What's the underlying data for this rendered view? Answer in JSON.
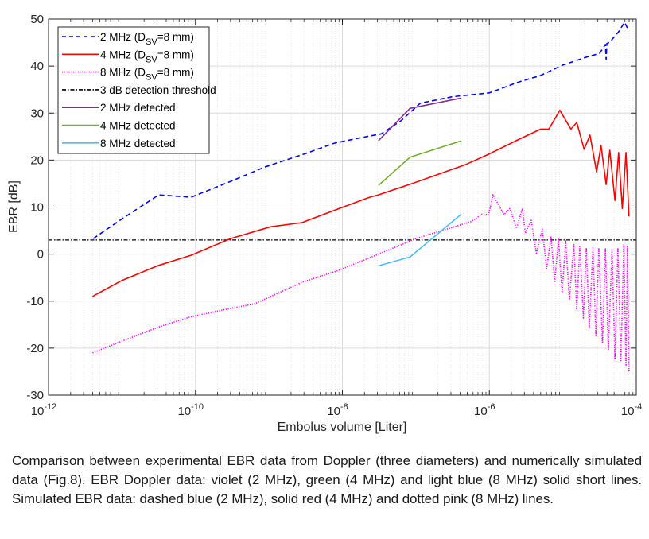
{
  "chart_data": {
    "type": "line",
    "title": "",
    "xlabel": "Embolus volume [Liter]",
    "ylabel": "EBR [dB]",
    "xscale": "log",
    "xlim": [
      1e-12,
      0.0001
    ],
    "ylim": [
      -30,
      50
    ],
    "grid": true,
    "legend_position": "top-left",
    "x_ticks": [
      {
        "base": "10",
        "exp": "-12",
        "value": 1e-12
      },
      {
        "base": "10",
        "exp": "-10",
        "value": 1e-10
      },
      {
        "base": "10",
        "exp": "-8",
        "value": 1e-08
      },
      {
        "base": "10",
        "exp": "-6",
        "value": 1e-06
      },
      {
        "base": "10",
        "exp": "-4",
        "value": 0.0001
      }
    ],
    "y_ticks": [
      "-30",
      "-20",
      "-10",
      "0",
      "10",
      "20",
      "30",
      "40",
      "50"
    ],
    "series": [
      {
        "name": "2 MHz (DSV=8 mm)",
        "legend_main": "2 MHz (D",
        "legend_sub": "SV",
        "legend_tail": "=8 mm)",
        "color": "#0000ff",
        "style": "dashed",
        "log10_x": [
          -11.39,
          -11.0,
          -10.5,
          -10.06,
          -9.5,
          -9.06,
          -8.5,
          -8.11,
          -7.8,
          -7.47,
          -7.2,
          -6.94,
          -6.5,
          -6.0,
          -5.6,
          -5.3,
          -5.0,
          -4.7,
          -4.5,
          -4.42,
          -4.41,
          -4.4,
          -4.36,
          -4.24,
          -4.16,
          -4.12
        ],
        "y": [
          3.3,
          7.5,
          12.6,
          12.1,
          15.6,
          18.5,
          21.4,
          23.6,
          24.6,
          25.6,
          28.4,
          32.1,
          33.5,
          34.3,
          36.6,
          38.0,
          40.2,
          41.8,
          42.7,
          44.6,
          41.4,
          44.8,
          45.1,
          47.3,
          49.3,
          48.1
        ]
      },
      {
        "name": "4 MHz (DSV=8 mm)",
        "legend_main": "4 MHz (D",
        "legend_sub": "SV",
        "legend_tail": "=8 mm)",
        "color": "#ff0000",
        "style": "solid",
        "log10_x": [
          -11.4,
          -11.0,
          -10.5,
          -10.06,
          -9.52,
          -8.98,
          -8.55,
          -8.06,
          -7.63,
          -7.51,
          -7.03,
          -6.33,
          -6.03,
          -5.6,
          -5.3,
          -5.19,
          -5.04,
          -4.89,
          -4.81,
          -4.71,
          -4.63,
          -4.54,
          -4.48,
          -4.41,
          -4.36,
          -4.29,
          -4.24,
          -4.19,
          -4.14,
          -4.1
        ],
        "y": [
          -9.0,
          -5.6,
          -2.4,
          -0.25,
          3.3,
          5.8,
          6.7,
          9.6,
          12.1,
          12.6,
          15.1,
          19.0,
          21.1,
          24.4,
          26.6,
          26.6,
          30.6,
          26.6,
          28.0,
          22.3,
          25.3,
          17.5,
          23.1,
          14.8,
          22.1,
          11.4,
          21.6,
          9.7,
          21.6,
          8.0
        ]
      },
      {
        "name": "8 MHz (DSV=8 mm)",
        "legend_main": "8 MHz (D",
        "legend_sub": "SV",
        "legend_tail": "=8 mm)",
        "color": "#ff00ff",
        "style": "dotted",
        "log10_x": [
          -11.4,
          -11.0,
          -10.5,
          -10.06,
          -9.6,
          -9.2,
          -8.55,
          -8.06,
          -7.57,
          -7.0,
          -6.25,
          -6.1,
          -6.01,
          -5.95,
          -5.8,
          -5.72,
          -5.63,
          -5.55,
          -5.51,
          -5.43,
          -5.36,
          -5.28,
          -5.22,
          -5.16,
          -5.11,
          -5.06,
          -5.01,
          -4.96,
          -4.91,
          -4.85,
          -4.81,
          -4.77,
          -4.72,
          -4.68,
          -4.64,
          -4.59,
          -4.55,
          -4.51,
          -4.46,
          -4.42,
          -4.38,
          -4.33,
          -4.29,
          -4.25,
          -4.21,
          -4.17,
          -4.14,
          -4.12,
          -4.1
        ],
        "y": [
          -21.0,
          -18.5,
          -15.5,
          -13.3,
          -11.8,
          -10.6,
          -6.0,
          -3.5,
          -0.4,
          3.3,
          6.9,
          8.5,
          8.4,
          12.6,
          8.4,
          9.7,
          5.5,
          9.7,
          4.5,
          7.2,
          0.2,
          5.3,
          -3.1,
          3.6,
          -6.0,
          3.3,
          -8.2,
          2.8,
          -9.7,
          2.0,
          -11.9,
          1.6,
          -13.6,
          1.3,
          -15.8,
          1.3,
          -17.5,
          1.3,
          -19.0,
          1.1,
          -20.4,
          1.1,
          -22.4,
          1.3,
          -22.9,
          2.0,
          -23.8,
          1.6,
          -25.0
        ]
      },
      {
        "name": "3 dB detection threshold",
        "legend_main": "3 dB detection threshold",
        "color": "#000000",
        "style": "dashdot",
        "log10_x": [
          -12,
          -4
        ],
        "y": [
          3,
          3
        ]
      },
      {
        "name": "2 MHz detected",
        "legend_main": "2 MHz detected",
        "color": "#7e2f8e",
        "style": "solid",
        "log10_x": [
          -7.51,
          -7.08,
          -6.38
        ],
        "y": [
          24.1,
          31.0,
          33.2
        ]
      },
      {
        "name": "4 MHz detected",
        "legend_main": "4 MHz detected",
        "color": "#77ac30",
        "style": "solid",
        "log10_x": [
          -7.51,
          -7.08,
          -6.38
        ],
        "y": [
          14.6,
          20.6,
          24.1
        ]
      },
      {
        "name": "8 MHz detected",
        "legend_main": "8 MHz detected",
        "color": "#4dbeee",
        "style": "solid",
        "log10_x": [
          -7.51,
          -7.08,
          -6.38
        ],
        "y": [
          -2.5,
          -0.6,
          8.5
        ]
      }
    ]
  },
  "caption": "Comparison between experimental EBR data from Doppler (three diameters) and numerically simulated data (Fig.8). EBR Doppler data: violet (2 MHz), green (4 MHz) and light blue (8 MHz) solid short lines. Simulated EBR data: dashed blue (2 MHz), solid red (4 MHz) and dotted pink (8 MHz) lines."
}
